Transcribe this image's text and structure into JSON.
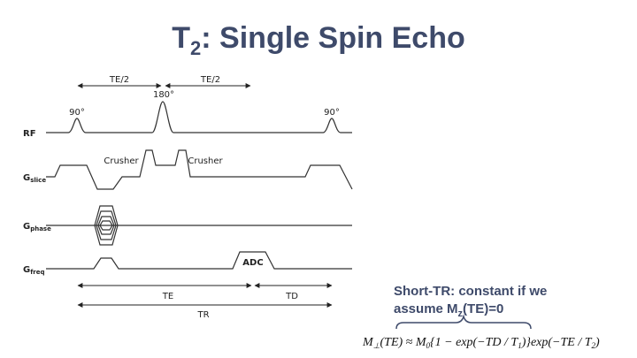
{
  "title": {
    "main": "T",
    "sub": "2",
    "rest": ": Single Spin Echo"
  },
  "diagram": {
    "timing": {
      "half_te_1": "TE/2",
      "half_te_2": "TE/2",
      "te": "TE",
      "td": "TD",
      "tr": "TR"
    },
    "pulses": {
      "first": "90°",
      "refocus": "180°",
      "next": "90°"
    },
    "rows": [
      {
        "label": "RF"
      },
      {
        "label": "G",
        "sub": "slice"
      },
      {
        "label": "G",
        "sub": "phase"
      },
      {
        "label": "G",
        "sub": "freq"
      }
    ],
    "crushers": [
      "Crusher",
      "Crusher"
    ],
    "adc": "ADC"
  },
  "annotation": {
    "line1": "Short-TR: constant if we",
    "line2_a": "assume M",
    "line2_sub": "z",
    "line2_b": "(TE)=0"
  },
  "formula": {
    "parts": [
      "M",
      "⊥",
      "(TE) ≈ M",
      "0",
      "{1 − exp(−TD / T",
      "1",
      ")}exp(−TE / T",
      "2",
      ")"
    ]
  }
}
